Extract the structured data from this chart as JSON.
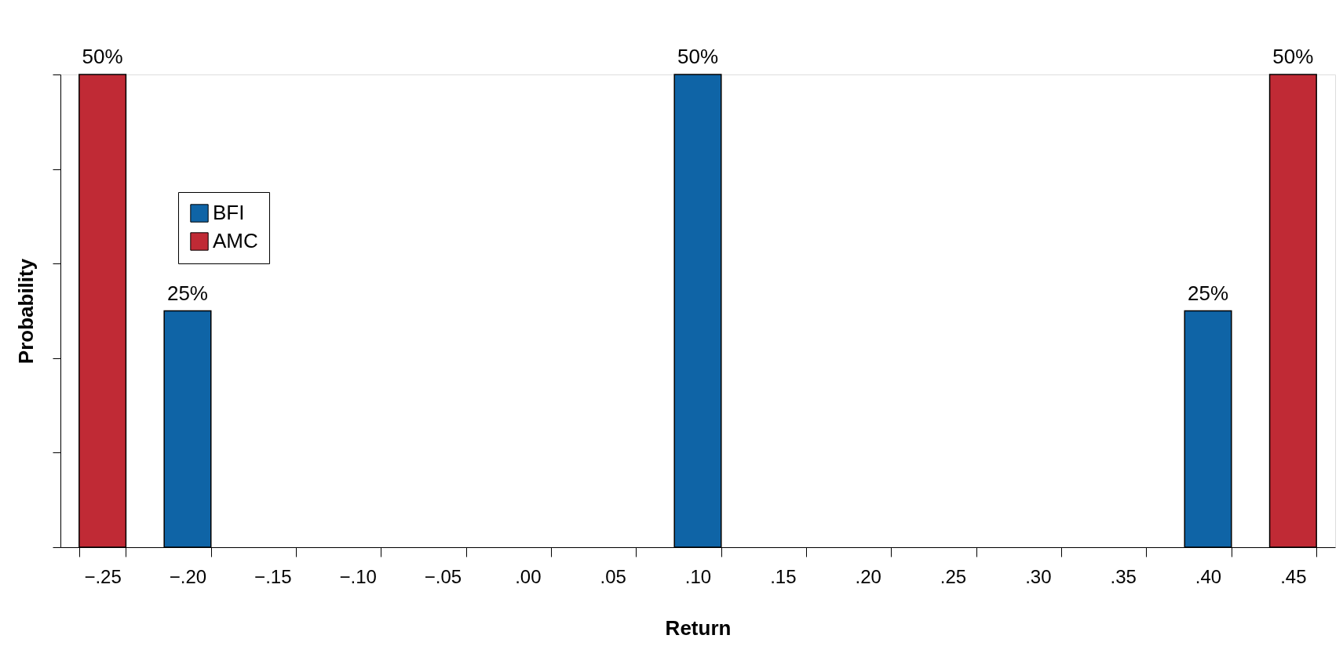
{
  "chart_data": {
    "type": "bar",
    "xlabel": "Return",
    "ylabel": "Probability",
    "categories": [
      "−.25",
      "−.20",
      "−.15",
      "−.10",
      "−.05",
      ".00",
      ".05",
      ".10",
      ".15",
      ".20",
      ".25",
      ".30",
      ".35",
      ".40",
      ".45"
    ],
    "series": [
      {
        "name": "BFI",
        "color": "#0f64a6",
        "values": [
          null,
          25,
          null,
          null,
          null,
          null,
          null,
          50,
          null,
          null,
          null,
          null,
          null,
          25,
          null
        ],
        "value_labels": [
          null,
          "25%",
          null,
          null,
          null,
          null,
          null,
          "50%",
          null,
          null,
          null,
          null,
          null,
          "25%",
          null
        ]
      },
      {
        "name": "AMC",
        "color": "#c02a35",
        "values": [
          50,
          null,
          null,
          null,
          null,
          null,
          null,
          null,
          null,
          null,
          null,
          null,
          null,
          null,
          50
        ],
        "value_labels": [
          "50%",
          null,
          null,
          null,
          null,
          null,
          null,
          null,
          null,
          null,
          null,
          null,
          null,
          null,
          "50%"
        ]
      }
    ],
    "ylim": [
      0,
      50
    ],
    "yticks": [
      {
        "value": 0,
        "label": null
      },
      {
        "value": 10,
        "label": null
      },
      {
        "value": 20,
        "label": null
      },
      {
        "value": 30,
        "label": null
      },
      {
        "value": 40,
        "label": null
      },
      {
        "value": 50,
        "label": null
      }
    ],
    "tick_labels": "x",
    "grid": false,
    "legend": "top left"
  }
}
